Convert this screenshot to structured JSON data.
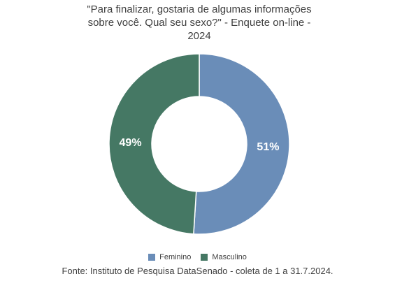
{
  "chart_data": {
    "type": "pie",
    "title_lines": [
      "\"Para finalizar, gostaria de algumas informações",
      "sobre você. Qual seu sexo?\" - Enquete on-line -",
      "2024"
    ],
    "slices": [
      {
        "label": "Feminino",
        "value": 51,
        "display": "51%",
        "color": "#6a8db8"
      },
      {
        "label": "Masculino",
        "value": 49,
        "display": "49%",
        "color": "#457864"
      }
    ],
    "donut": true,
    "legend_position": "bottom",
    "source": "Fonte: Instituto de Pesquisa DataSenado - coleta de 1 a 31.7.2024."
  }
}
